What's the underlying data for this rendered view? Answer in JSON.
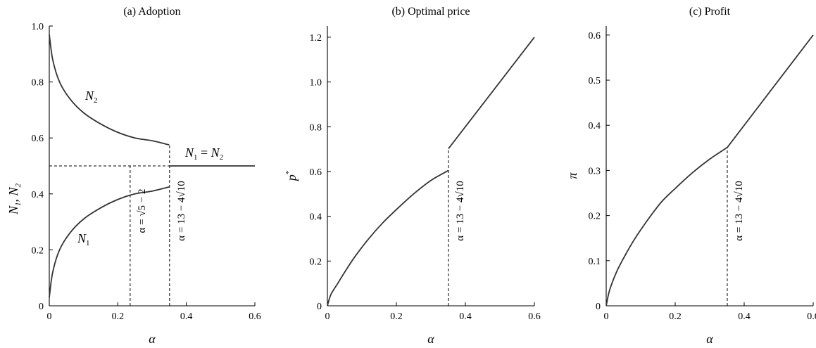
{
  "chart_data": [
    {
      "type": "line",
      "title": "(a) Adoption",
      "xlabel": "α",
      "ylabel_parts": [
        "N",
        "1",
        ", ",
        "N",
        "2"
      ],
      "xlim": [
        0,
        0.6
      ],
      "ylim": [
        0,
        1.0
      ],
      "xticks": [
        "0",
        "0.2",
        "0.4",
        "0.6"
      ],
      "yticks": [
        "0",
        "0.2",
        "0.4",
        "0.6",
        "0.8",
        "1.0"
      ],
      "xtick_values": [
        0,
        0.2,
        0.4,
        0.6
      ],
      "ytick_values": [
        0,
        0.2,
        0.4,
        0.6,
        0.8,
        1.0
      ],
      "series": [
        {
          "name": "N2",
          "x": [
            0.0,
            0.01,
            0.03,
            0.06,
            0.1,
            0.15,
            0.2,
            0.25,
            0.3,
            0.35
          ],
          "y": [
            0.97,
            0.88,
            0.8,
            0.74,
            0.69,
            0.65,
            0.62,
            0.6,
            0.59,
            0.575
          ]
        },
        {
          "name": "N1",
          "x": [
            0.0,
            0.01,
            0.03,
            0.06,
            0.1,
            0.15,
            0.2,
            0.25,
            0.3,
            0.35
          ],
          "y": [
            0.03,
            0.12,
            0.2,
            0.26,
            0.31,
            0.35,
            0.38,
            0.4,
            0.41,
            0.425
          ]
        },
        {
          "name": "N1 = N2",
          "x": [
            0.35,
            0.6
          ],
          "y": [
            0.5,
            0.5
          ]
        }
      ],
      "series_labels": [
        {
          "base": "N",
          "sub": "2"
        },
        {
          "base": "N",
          "sub": "1"
        },
        {
          "base1": "N",
          "sub1": "1",
          "eq": " = ",
          "base2": "N",
          "sub2": "2"
        }
      ],
      "reference_lines": {
        "horizontal": {
          "y": 0.5,
          "x": [
            0,
            0.35
          ]
        },
        "vertical": [
          {
            "x": 0.236,
            "y": [
              0,
              0.5
            ]
          },
          {
            "x": 0.351,
            "y": [
              0,
              0.575
            ]
          }
        ]
      },
      "annotations": [
        {
          "text": "α = √5 − 2",
          "x": 0.236
        },
        {
          "text": "α = 13 − 4√10",
          "x": 0.351
        }
      ],
      "grid": false
    },
    {
      "type": "line",
      "title": "(b) Optimal price",
      "xlabel": "α",
      "ylabel": "p*",
      "xlim": [
        0,
        0.6
      ],
      "ylim": [
        0,
        1.25
      ],
      "xticks": [
        "0",
        "0.2",
        "0.4",
        "0.6"
      ],
      "yticks": [
        "0",
        "0.2",
        "0.4",
        "0.6",
        "0.8",
        "1.0",
        "1.2"
      ],
      "xtick_values": [
        0,
        0.2,
        0.4,
        0.6
      ],
      "ytick_values": [
        0,
        0.2,
        0.4,
        0.6,
        0.8,
        1.0,
        1.2
      ],
      "series": [
        {
          "x": [
            0.0,
            0.01,
            0.03,
            0.05,
            0.08,
            0.12,
            0.16,
            0.2,
            0.25,
            0.3,
            0.351
          ],
          "y": [
            0.0,
            0.05,
            0.1,
            0.15,
            0.22,
            0.3,
            0.37,
            0.43,
            0.5,
            0.56,
            0.605
          ]
        },
        {
          "x": [
            0.351,
            0.6
          ],
          "y": [
            0.702,
            1.2
          ]
        }
      ],
      "reference_lines": {
        "vertical": [
          {
            "x": 0.351,
            "y": [
              0,
              0.702
            ]
          }
        ]
      },
      "annotations": [
        {
          "text": "α = 13 − 4√10",
          "x": 0.351
        }
      ],
      "grid": false
    },
    {
      "type": "line",
      "title": "(c) Profit",
      "xlabel": "α",
      "ylabel": "π",
      "xlim": [
        0,
        0.6
      ],
      "ylim": [
        0,
        0.62
      ],
      "xticks": [
        "0",
        "0.2",
        "0.4",
        "0.6"
      ],
      "yticks": [
        "0",
        "0.1",
        "0.2",
        "0.3",
        "0.4",
        "0.5",
        "0.6"
      ],
      "xtick_values": [
        0,
        0.2,
        0.4,
        0.6
      ],
      "ytick_values": [
        0,
        0.1,
        0.2,
        0.3,
        0.4,
        0.5,
        0.6
      ],
      "series": [
        {
          "x": [
            0.0,
            0.01,
            0.03,
            0.05,
            0.08,
            0.12,
            0.16,
            0.2,
            0.25,
            0.3,
            0.351
          ],
          "y": [
            0.0,
            0.035,
            0.075,
            0.105,
            0.145,
            0.19,
            0.23,
            0.26,
            0.295,
            0.325,
            0.351
          ]
        },
        {
          "x": [
            0.351,
            0.6
          ],
          "y": [
            0.351,
            0.6
          ]
        }
      ],
      "reference_lines": {
        "vertical": [
          {
            "x": 0.351,
            "y": [
              0,
              0.351
            ]
          }
        ]
      },
      "annotations": [
        {
          "text": "α = 13 − 4√10",
          "x": 0.351
        }
      ],
      "grid": false
    }
  ]
}
